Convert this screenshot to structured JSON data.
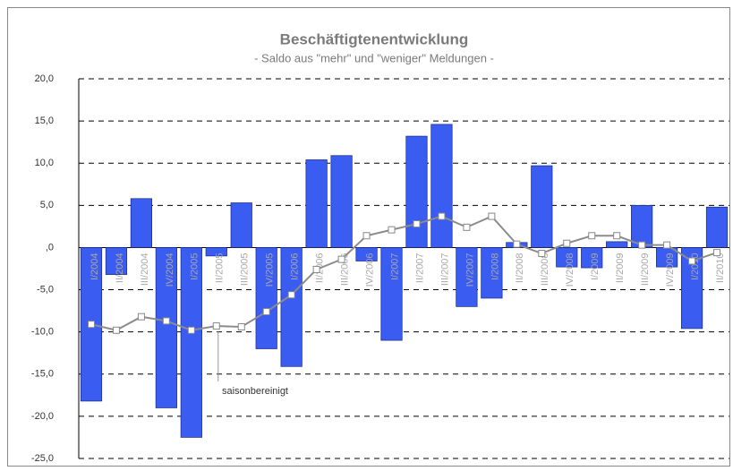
{
  "chart_data": {
    "type": "bar",
    "title": "Beschäftigtenentwicklung",
    "subtitle": "- Saldo aus \"mehr\" und \"weniger\" Meldungen -",
    "categories": [
      "I/2004",
      "II/2004",
      "III/2004",
      "IV/2004",
      "I/2005",
      "II/2005",
      "III/2005",
      "IV/2005",
      "I/2006",
      "II/2006",
      "III/2006",
      "IV/2006",
      "I/2007",
      "II/2007",
      "III/2007",
      "IV/2007",
      "I/2008",
      "II/2008",
      "III/2008",
      "IV/2008",
      "I/2009",
      "II/2009",
      "III/2009",
      "IV/2009",
      "I/2010",
      "II/2010"
    ],
    "series": [
      {
        "type": "bar",
        "color": "#3a5cf0",
        "values": [
          -18.2,
          -3.2,
          5.8,
          -19.0,
          -22.5,
          -1.0,
          5.3,
          -12.0,
          -14.1,
          10.4,
          10.9,
          -1.6,
          -11.0,
          13.2,
          14.6,
          -7.0,
          -6.0,
          0.6,
          9.7,
          -2.3,
          -2.4,
          0.7,
          5.0,
          -2.3,
          -9.6,
          4.8
        ]
      },
      {
        "type": "line",
        "name": "saisonbereinigt",
        "color": "#8c8c8c",
        "values": [
          -9.1,
          -9.8,
          -8.2,
          -8.7,
          -9.8,
          -9.3,
          -9.4,
          -7.6,
          -5.6,
          -2.6,
          -1.4,
          1.4,
          2.1,
          2.8,
          3.7,
          2.4,
          3.7,
          0.4,
          -0.7,
          0.5,
          1.4,
          1.4,
          0.3,
          0.3,
          -1.6,
          -0.6
        ]
      }
    ],
    "ylim": [
      -25,
      20
    ],
    "yticks": [
      {
        "value": -25,
        "label": "-25,0"
      },
      {
        "value": -20,
        "label": "-20,0"
      },
      {
        "value": -15,
        "label": "-15,0"
      },
      {
        "value": -10,
        "label": "-10,0"
      },
      {
        "value": -5,
        "label": "-5,0"
      },
      {
        "value": 0,
        "label": ",0"
      },
      {
        "value": 5,
        "label": "5,0"
      },
      {
        "value": 10,
        "label": "10,0"
      },
      {
        "value": 15,
        "label": "15,0"
      },
      {
        "value": 20,
        "label": "20,0"
      }
    ],
    "grid": true
  }
}
